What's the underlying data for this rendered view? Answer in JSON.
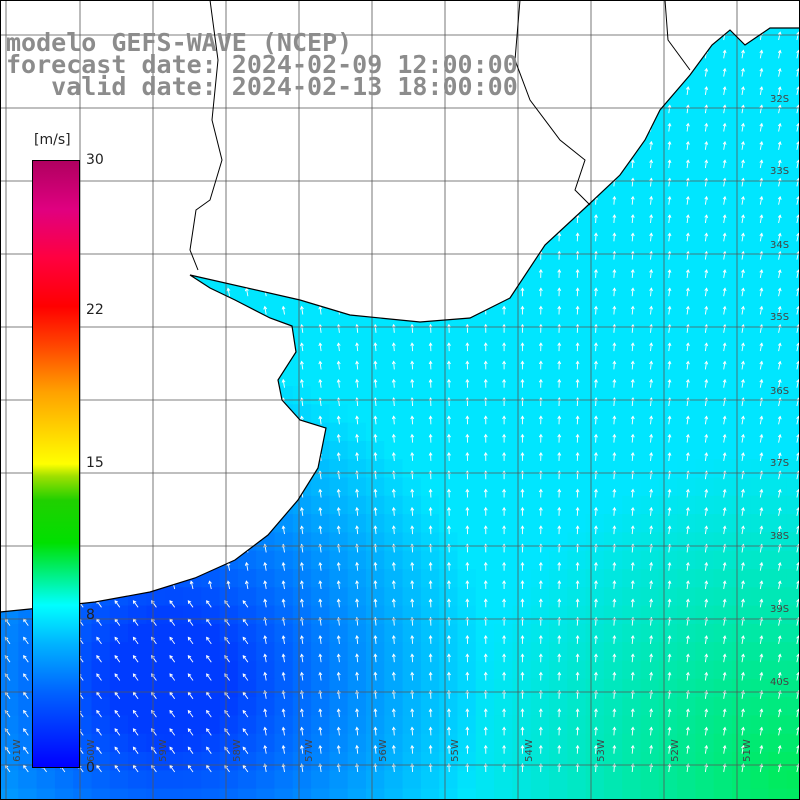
{
  "title": {
    "line1": "modelo GEFS-WAVE (NCEP)",
    "line2": "forecast date: 2024-02-09 12:00:00",
    "line3": "   valid date: 2024-02-13 18:00:00"
  },
  "colorbar": {
    "units": "[m/s]",
    "ticks": [
      "30",
      "22",
      "15",
      "8",
      "0"
    ]
  },
  "lat_labels": [
    "32S",
    "33S",
    "34S",
    "35S",
    "36S",
    "37S",
    "38S",
    "39S",
    "40S"
  ],
  "lon_labels": [
    "61W",
    "60W",
    "59W",
    "58W",
    "57W",
    "56W",
    "55W",
    "54W",
    "53W",
    "52W",
    "51W"
  ],
  "colors": {
    "land": "#ffffff",
    "grid": "#555555",
    "coast": "#000000",
    "arrow": "#ffffff",
    "title": "#8c8c8c"
  }
}
